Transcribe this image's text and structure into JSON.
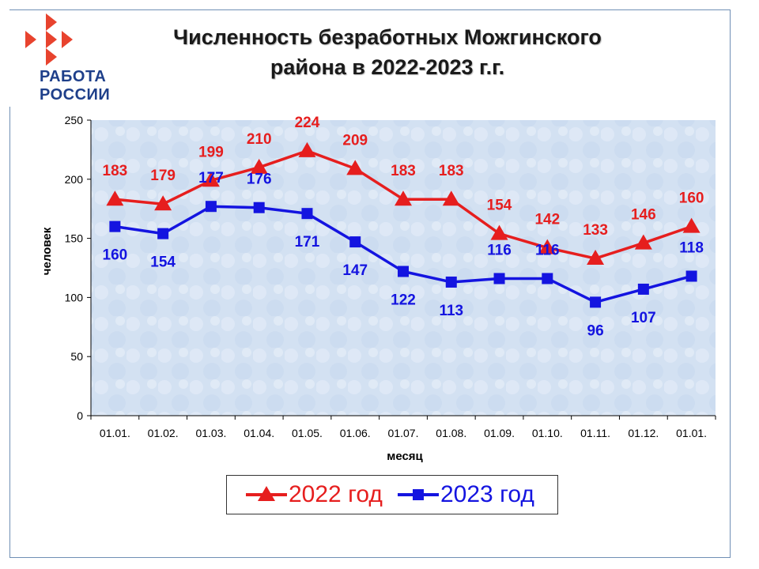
{
  "logo": {
    "line1": "РАБОТА",
    "line2": "РОССИИ"
  },
  "title": {
    "line1": "Численность безработных Можгинского",
    "line2": "района в 2022-2023 г.г."
  },
  "chart_data": {
    "type": "line",
    "categories": [
      "01.01.",
      "01.02.",
      "01.03.",
      "01.04.",
      "01.05.",
      "01.06.",
      "01.07.",
      "01.08.",
      "01.09.",
      "01.10.",
      "01.11.",
      "01.12.",
      "01.01."
    ],
    "series": [
      {
        "name": "2022 год",
        "color": "#e61e1e",
        "marker": "triangle",
        "values": [
          183,
          179,
          199,
          210,
          224,
          209,
          183,
          183,
          154,
          142,
          133,
          146,
          160
        ]
      },
      {
        "name": "2023 год",
        "color": "#1414e0",
        "marker": "square",
        "values": [
          160,
          154,
          177,
          176,
          171,
          147,
          122,
          113,
          116,
          116,
          96,
          107,
          118
        ]
      }
    ],
    "xlabel": "месяц",
    "ylabel": "человек",
    "ylim": [
      0,
      250
    ],
    "yticks": [
      0,
      50,
      100,
      150,
      200,
      250
    ],
    "grid": false,
    "legend_position": "bottom"
  }
}
